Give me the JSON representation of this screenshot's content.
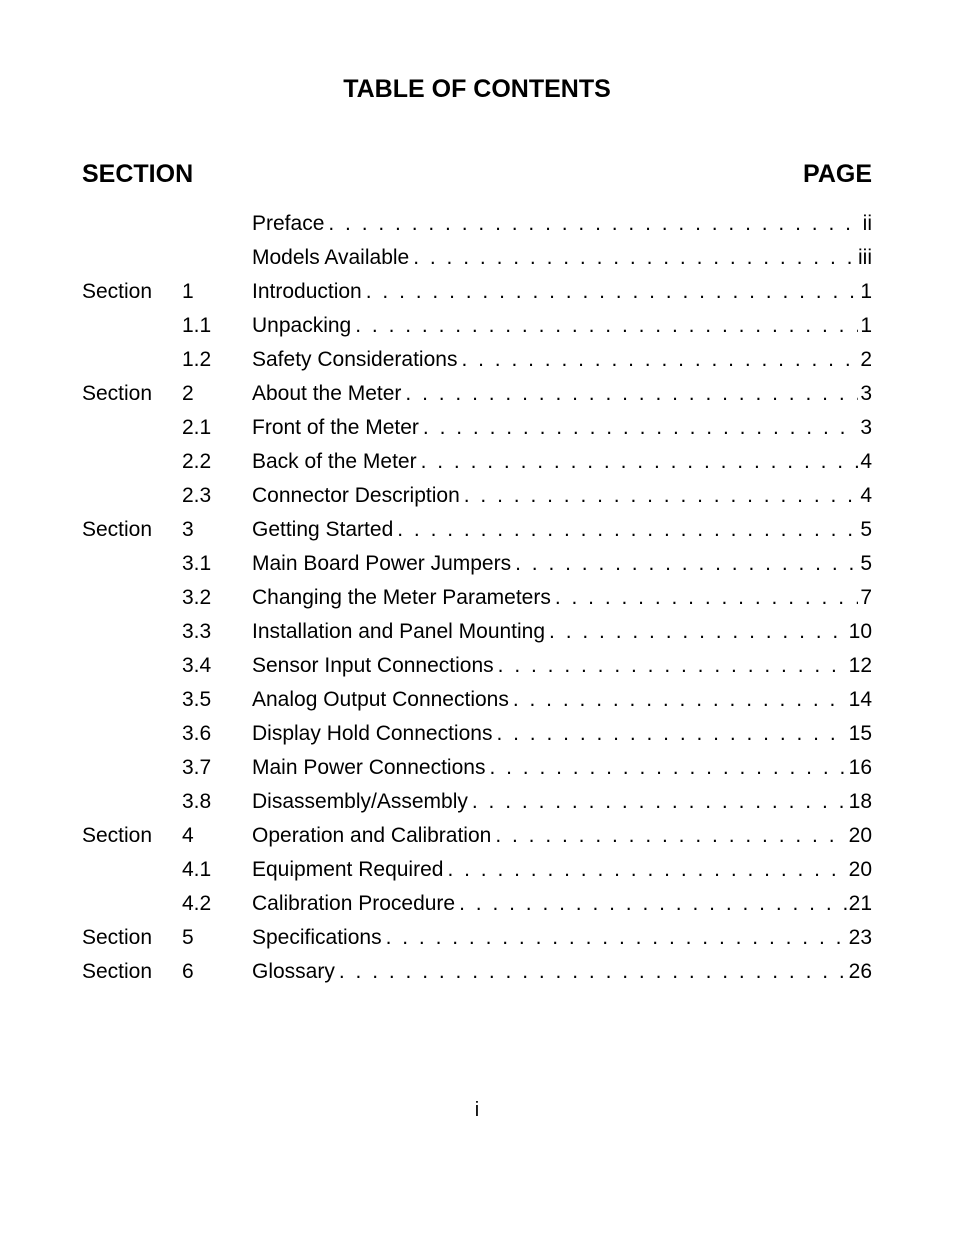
{
  "title": "TABLE OF CONTENTS",
  "header_left": "SECTION",
  "header_right": "PAGE",
  "page_footer": "i",
  "colors": {
    "background": "#ffffff",
    "text": "#000000"
  },
  "typography": {
    "title_fontsize": 25,
    "title_weight": "bold",
    "header_fontsize": 25,
    "header_weight": "bold",
    "body_fontsize": 21,
    "footer_fontsize": 20,
    "font_family": "Arial, Helvetica, sans-serif"
  },
  "entries": [
    {
      "section": "",
      "number": "",
      "label": "Preface",
      "page": "ii"
    },
    {
      "section": "",
      "number": "",
      "label": "Models Available",
      "page": "iii"
    },
    {
      "section": "Section",
      "number": "1",
      "label": "Introduction",
      "page": "1"
    },
    {
      "section": "",
      "number": "1.1",
      "label": "Unpacking",
      "page": "1"
    },
    {
      "section": "",
      "number": "1.2",
      "label": "Safety Considerations",
      "page": "2"
    },
    {
      "section": "Section",
      "number": "2",
      "label": "About the Meter",
      "page": "3"
    },
    {
      "section": "",
      "number": "2.1",
      "label": "Front of the Meter",
      "page": "3"
    },
    {
      "section": "",
      "number": "2.2",
      "label": "Back of the Meter",
      "page": "4"
    },
    {
      "section": "",
      "number": "2.3",
      "label": "Connector Description",
      "page": "4"
    },
    {
      "section": "Section",
      "number": "3",
      "label": "Getting Started",
      "page": "5"
    },
    {
      "section": "",
      "number": "3.1",
      "label": "Main Board Power Jumpers",
      "page": "5"
    },
    {
      "section": "",
      "number": "3.2",
      "label": "Changing the Meter Parameters",
      "page": "7"
    },
    {
      "section": "",
      "number": "3.3",
      "label": "Installation and Panel Mounting",
      "page": "10"
    },
    {
      "section": "",
      "number": "3.4",
      "label": "Sensor Input Connections",
      "page": "12"
    },
    {
      "section": "",
      "number": "3.5",
      "label": "Analog Output Connections",
      "page": "14"
    },
    {
      "section": "",
      "number": "3.6",
      "label": "Display Hold Connections",
      "page": "15"
    },
    {
      "section": "",
      "number": "3.7",
      "label": "Main Power Connections",
      "page": "16"
    },
    {
      "section": "",
      "number": "3.8",
      "label": "Disassembly/Assembly",
      "page": "18"
    },
    {
      "section": "Section",
      "number": "4",
      "label": "Operation and Calibration",
      "page": "20"
    },
    {
      "section": "",
      "number": "4.1",
      "label": "Equipment Required",
      "page": "20"
    },
    {
      "section": "",
      "number": "4.2",
      "label": "Calibration Procedure",
      "page": "21"
    },
    {
      "section": "Section",
      "number": "5",
      "label": "Specifications",
      "page": "23"
    },
    {
      "section": "Section",
      "number": "6",
      "label": "Glossary",
      "page": "26"
    }
  ]
}
